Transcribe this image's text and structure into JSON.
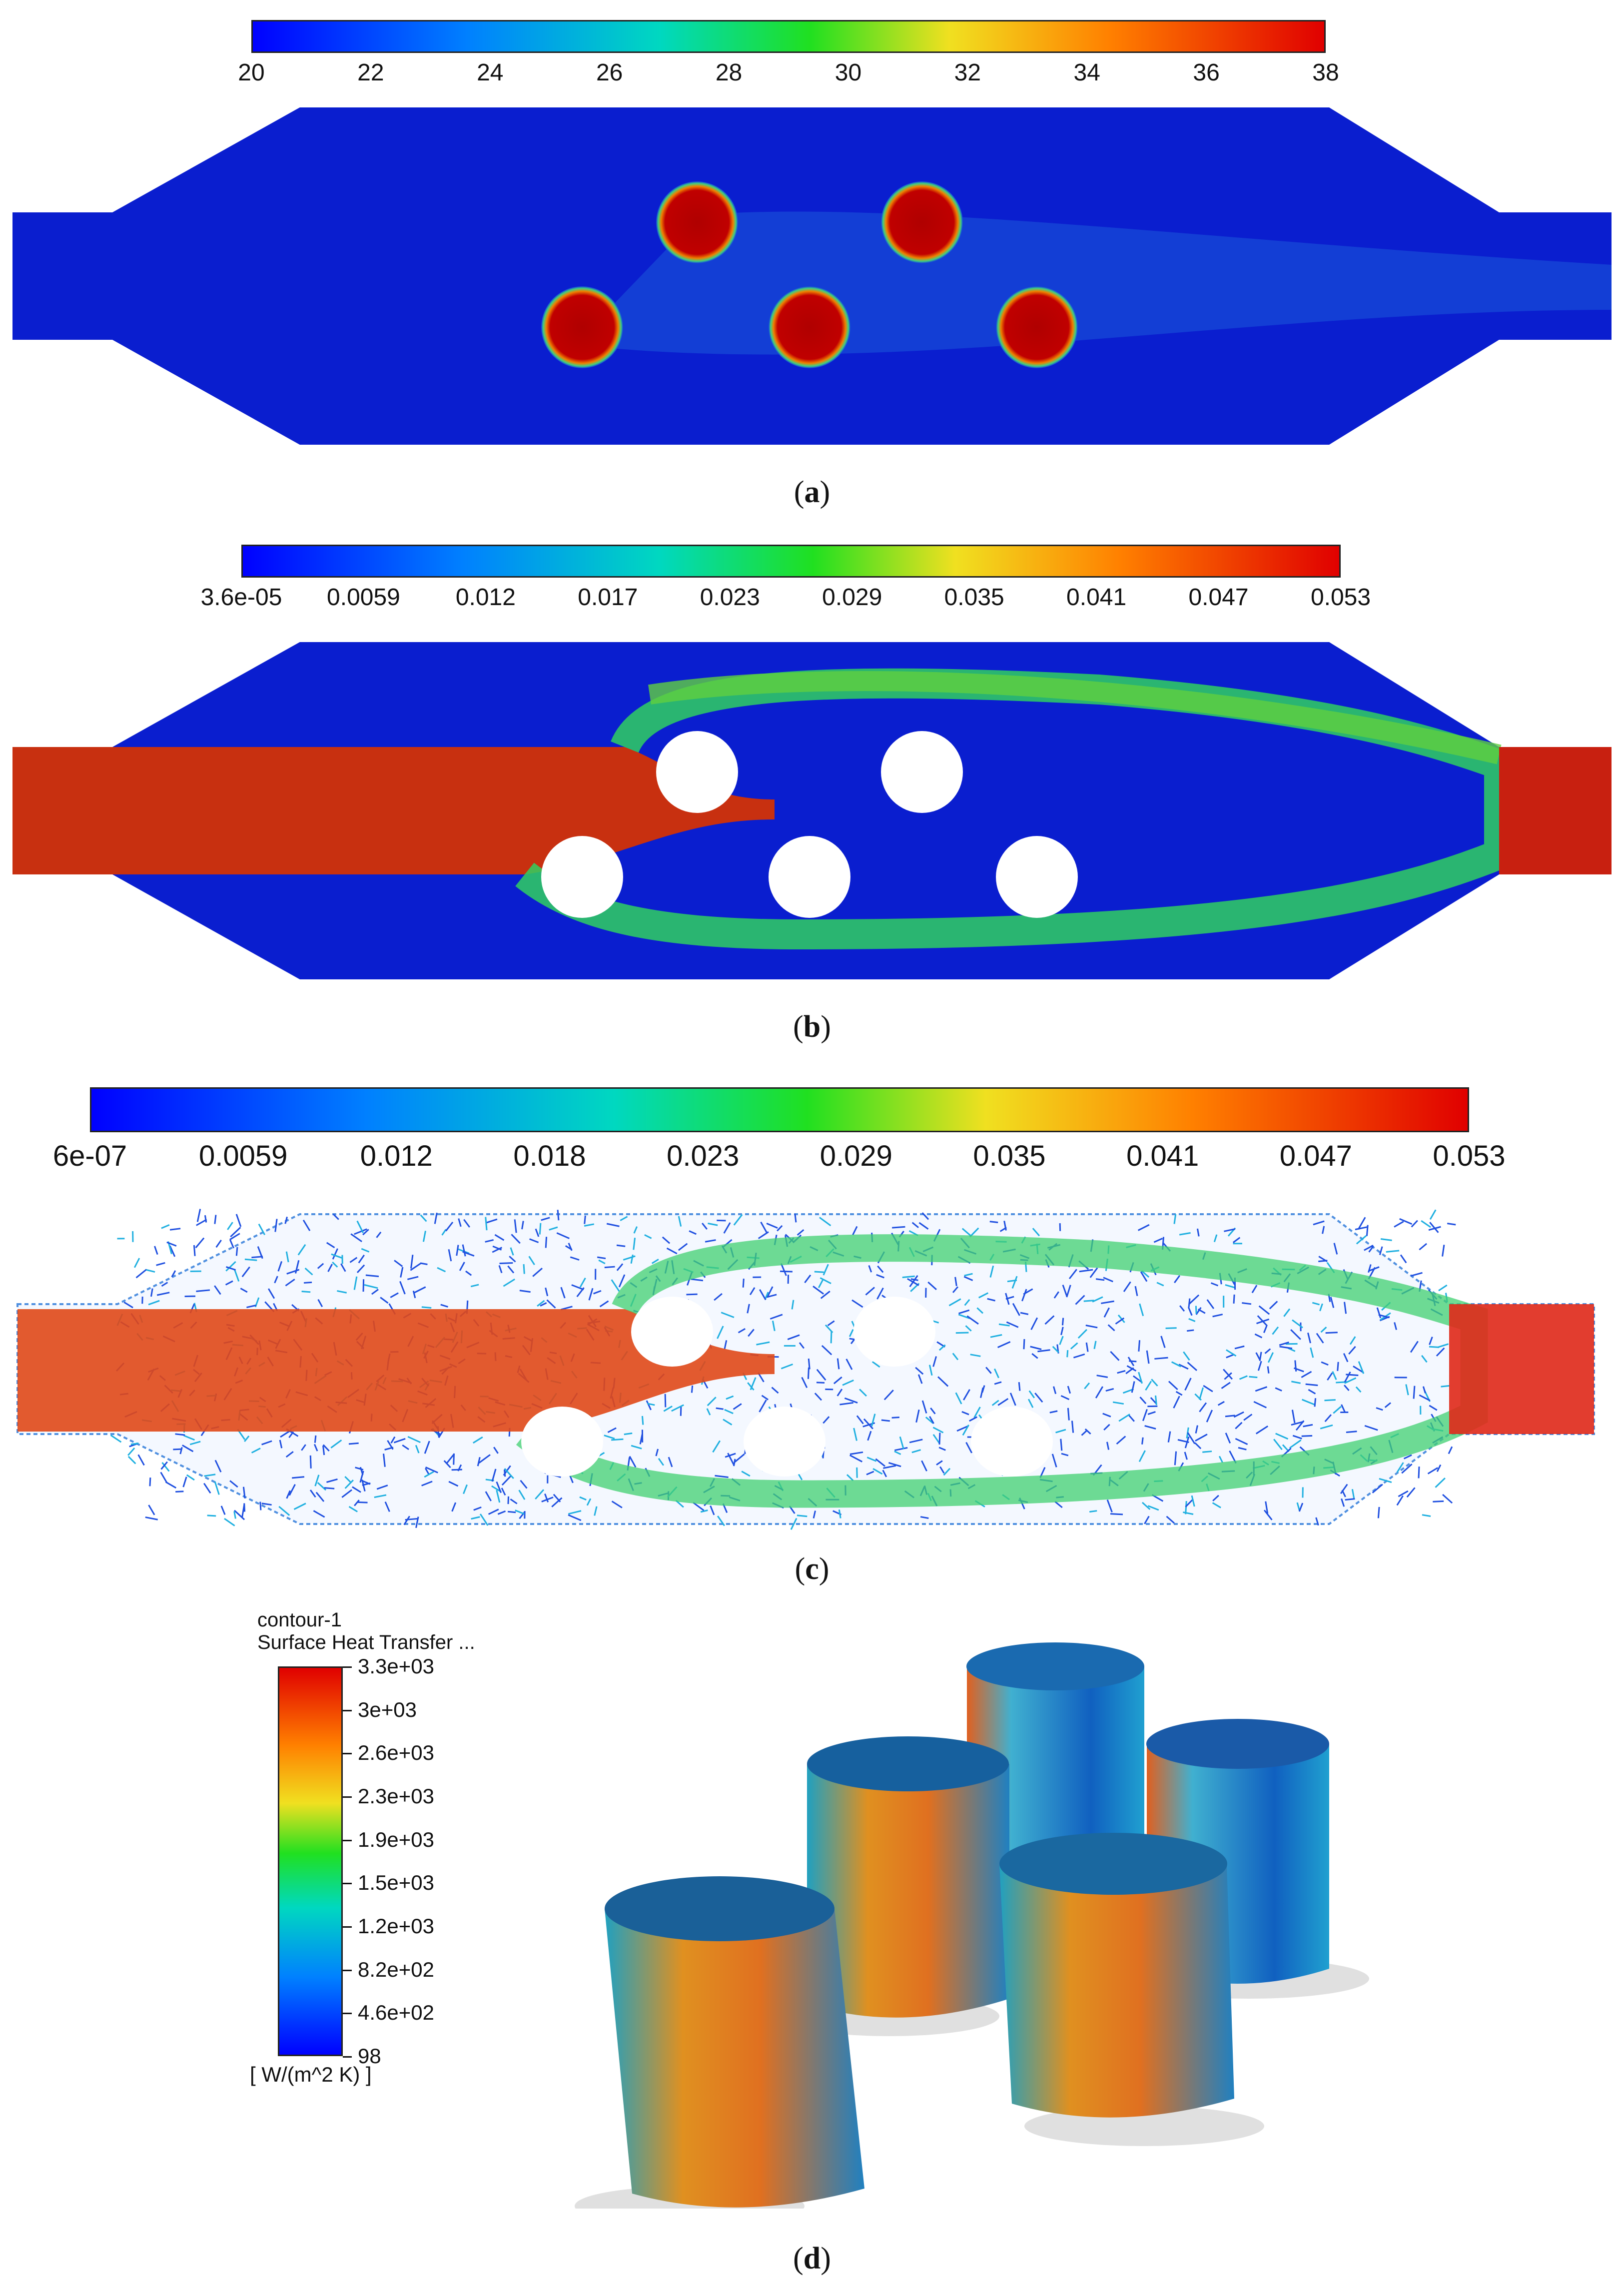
{
  "panels": {
    "a": {
      "caption_letter": "a",
      "colorbar_ticks": [
        "20",
        "22",
        "24",
        "26",
        "28",
        "30",
        "32",
        "34",
        "36",
        "38"
      ]
    },
    "b": {
      "caption_letter": "b",
      "colorbar_ticks": [
        "3.6e-05",
        "0.0059",
        "0.012",
        "0.017",
        "0.023",
        "0.029",
        "0.035",
        "0.041",
        "0.047",
        "0.053"
      ]
    },
    "c": {
      "caption_letter": "c",
      "colorbar_ticks": [
        "6e-07",
        "0.0059",
        "0.012",
        "0.018",
        "0.023",
        "0.029",
        "0.035",
        "0.041",
        "0.047",
        "0.053"
      ]
    },
    "d": {
      "caption_letter": "d",
      "legend_title_1": "contour-1",
      "legend_title_2": "Surface Heat Transfer ...",
      "legend_ticks": [
        "3.3e+03",
        "3e+03",
        "2.6e+03",
        "2.3e+03",
        "1.9e+03",
        "1.5e+03",
        "1.2e+03",
        "8.2e+02",
        "4.6e+02",
        "98"
      ],
      "legend_unit": "[ W/(m^2 K) ]"
    }
  },
  "colors": {
    "jet_blue": "#0000ff",
    "jet_red": "#e00000",
    "domain_blue": "#0a1ecf",
    "hot_red": "#b00000"
  }
}
